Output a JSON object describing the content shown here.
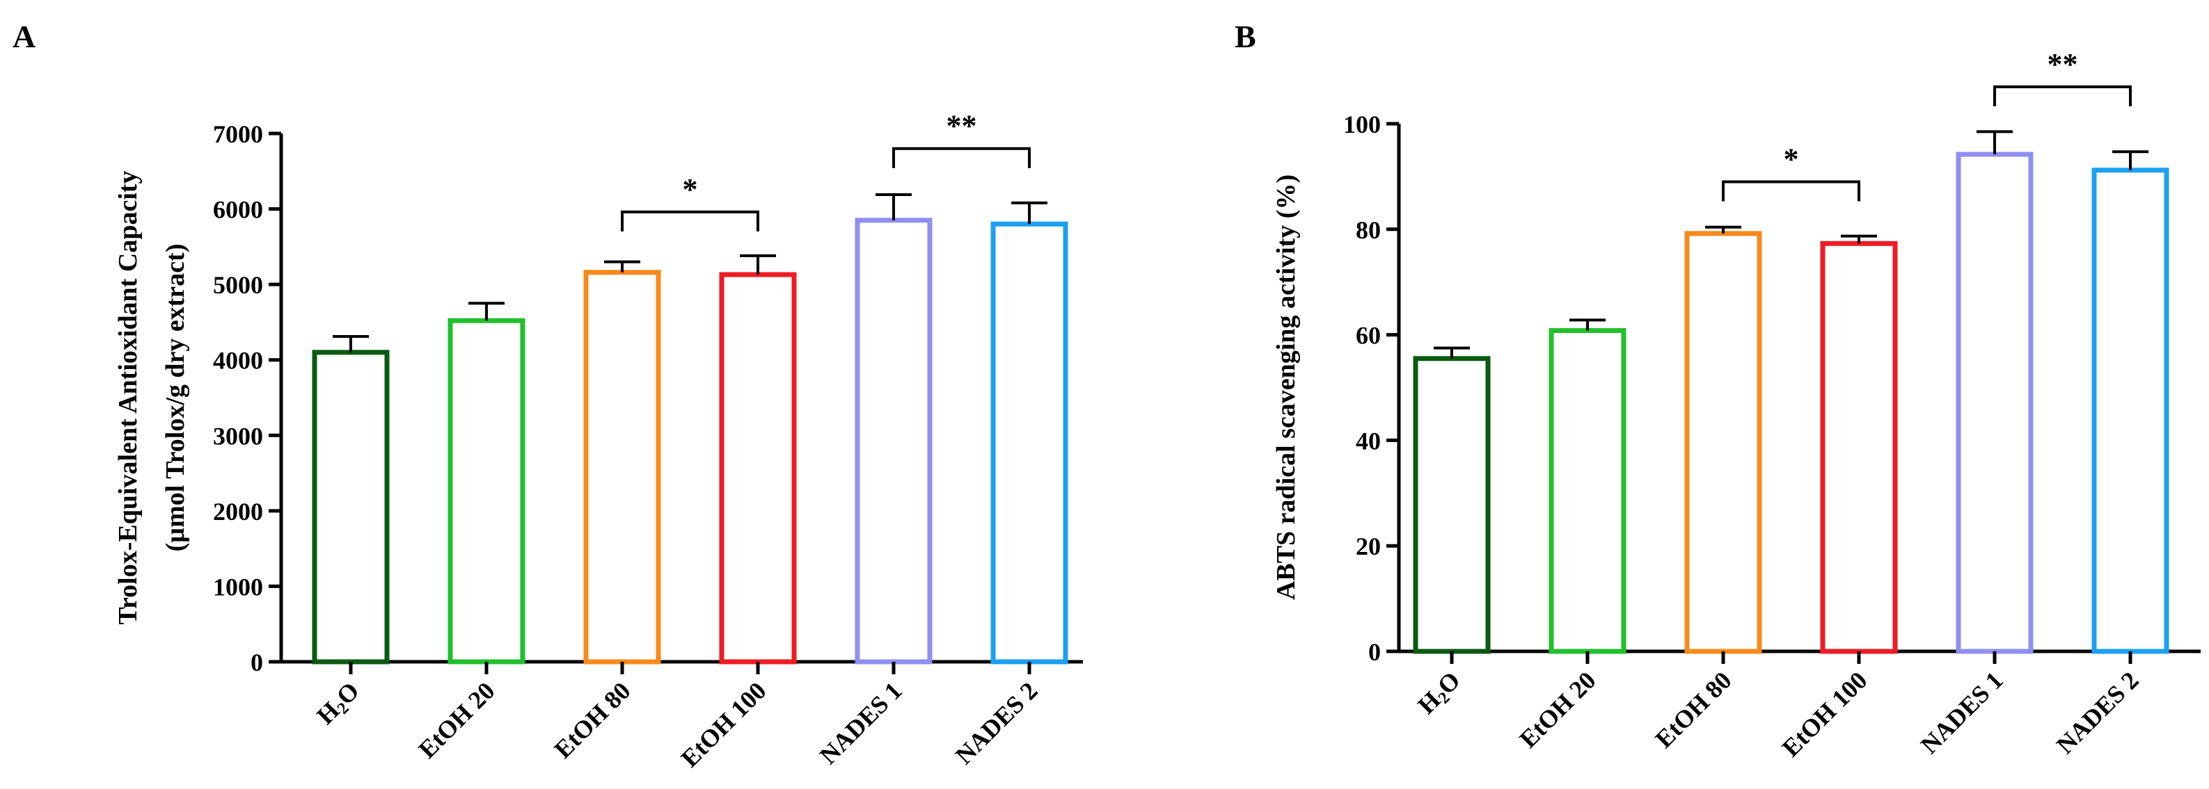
{
  "chart_data": [
    {
      "panel_label": "A",
      "type": "bar",
      "categories": [
        "H2O",
        "EtOH 20",
        "EtOH 80",
        "EtOH 100",
        "NADES 1",
        "NADES 2"
      ],
      "values": [
        4100,
        4520,
        5160,
        5130,
        5850,
        5800
      ],
      "errors": [
        210,
        230,
        140,
        250,
        340,
        280
      ],
      "colors": [
        "#0b5a12",
        "#22c02c",
        "#f7891c",
        "#ee1c24",
        "#8f8ff2",
        "#1ea0f0"
      ],
      "ylabel_lines": [
        "Trolox-Equivalent Antioxidant Capacity",
        "(µmol Trolox/g dry extract)"
      ],
      "ylim": [
        0,
        7000
      ],
      "yticks": [
        "0",
        "1000",
        "2000",
        "3000",
        "4000",
        "5000",
        "6000",
        "7000"
      ],
      "significance": [
        {
          "from": 2,
          "to": 3,
          "label": "*",
          "level": 5960
        },
        {
          "from": 4,
          "to": 5,
          "label": "**",
          "level": 6800
        }
      ]
    },
    {
      "panel_label": "B",
      "type": "bar",
      "categories": [
        "H2O",
        "EtOH 20",
        "EtOH 80",
        "EtOH 100",
        "NADES 1",
        "NADES 2"
      ],
      "values": [
        55.5,
        60.8,
        79.2,
        77.3,
        94.2,
        91.2
      ],
      "errors": [
        2.0,
        2.0,
        1.2,
        1.4,
        4.3,
        3.5
      ],
      "colors": [
        "#0b5a12",
        "#22c02c",
        "#f7891c",
        "#ee1c24",
        "#8f8ff2",
        "#1ea0f0"
      ],
      "ylabel_lines": [
        "ABTS radical scavenging activity (%)"
      ],
      "ylim": [
        0,
        100
      ],
      "yticks": [
        "0",
        "20",
        "40",
        "60",
        "80",
        "100"
      ],
      "significance": [
        {
          "from": 2,
          "to": 3,
          "label": "*",
          "level": 89
        },
        {
          "from": 4,
          "to": 5,
          "label": "**",
          "level": 107
        }
      ]
    }
  ]
}
